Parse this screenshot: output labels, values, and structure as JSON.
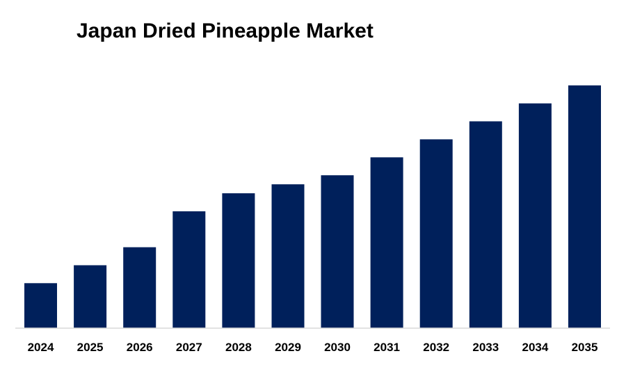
{
  "chart_data": {
    "type": "bar",
    "title": "Japan Dried Pineapple Market",
    "xlabel": "",
    "ylabel": "",
    "categories": [
      "2024",
      "2025",
      "2026",
      "2027",
      "2028",
      "2029",
      "2030",
      "2031",
      "2032",
      "2033",
      "2034",
      "2035"
    ],
    "values": [
      1.0,
      1.4,
      1.8,
      2.6,
      3.0,
      3.2,
      3.4,
      3.8,
      4.2,
      4.6,
      5.0,
      5.4
    ],
    "ylim": [
      0,
      6
    ],
    "grid": false,
    "legend": "none",
    "bar_color": "#00205B"
  }
}
